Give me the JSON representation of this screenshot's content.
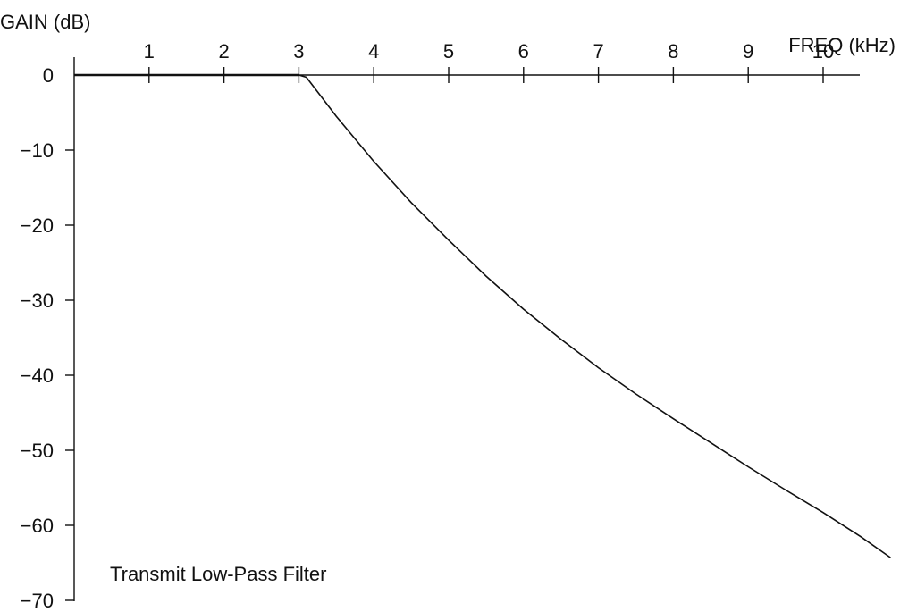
{
  "chart_data": {
    "type": "line",
    "title": "Transmit Low-Pass Filter",
    "xlabel": "FREQ (kHz)",
    "ylabel": "GAIN (dB)",
    "xlim": [
      0,
      10.5
    ],
    "ylim": [
      -70,
      0
    ],
    "x_ticks": [
      "1",
      "2",
      "3",
      "4",
      "5",
      "6",
      "7",
      "8",
      "9",
      "10"
    ],
    "y_ticks": [
      "0",
      "−10",
      "−20",
      "−30",
      "−40",
      "−50",
      "−60",
      "−70"
    ],
    "grid": false,
    "series": [
      {
        "x": [
          0,
          1,
          2,
          3,
          3.1,
          3.5,
          4,
          4.5,
          5,
          5.5,
          6,
          6.5,
          7,
          7.5,
          8,
          8.5,
          9,
          9.5,
          10,
          10.5,
          10.9
        ],
        "y": [
          0,
          0,
          0,
          0,
          -0.3,
          -5.5,
          -11.5,
          -17,
          -22,
          -26.8,
          -31.2,
          -35.2,
          -39,
          -42.5,
          -45.8,
          -49,
          -52.2,
          -55.3,
          -58.3,
          -61.5,
          -64.3
        ]
      }
    ]
  }
}
